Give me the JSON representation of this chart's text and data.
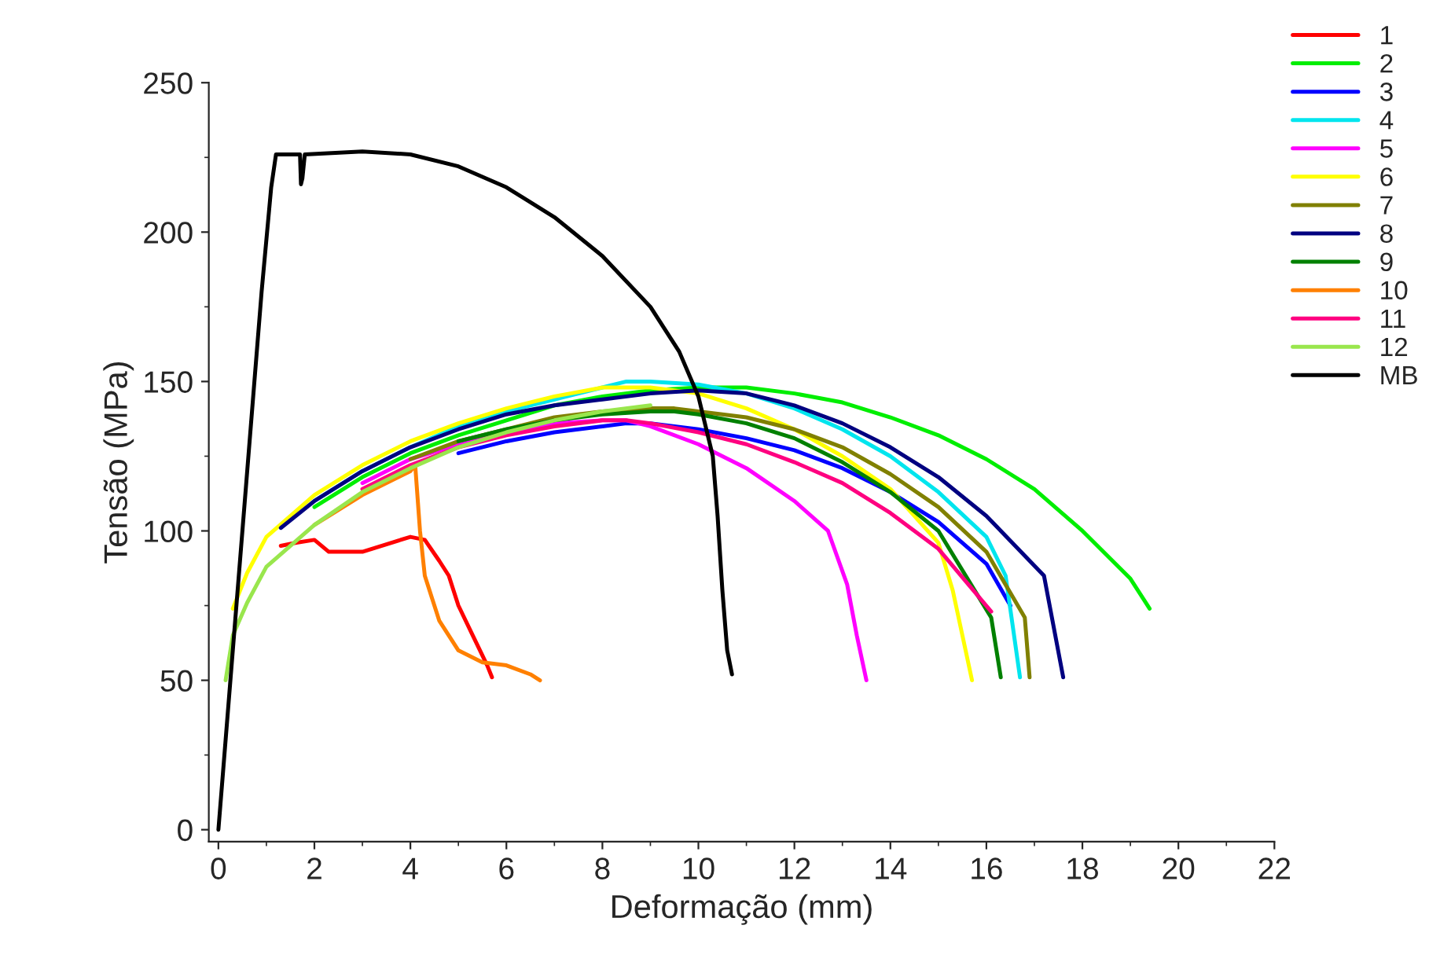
{
  "chart_data": {
    "type": "line",
    "xlabel": "Deformação (mm)",
    "ylabel": "Tensão (MPa)",
    "xlim": [
      -0.2,
      22
    ],
    "ylim": [
      -4,
      250
    ],
    "xticks": [
      0,
      2,
      4,
      6,
      8,
      10,
      12,
      14,
      16,
      18,
      20,
      22
    ],
    "yticks": [
      0,
      50,
      100,
      150,
      200,
      250
    ],
    "grid": false,
    "legend": "top right",
    "marker": "none",
    "line_style": "solid",
    "series": [
      {
        "name": "1",
        "color": "#ff0000",
        "x": [
          1.3,
          1.6,
          2,
          2.3,
          3,
          4,
          4.3,
          4.6,
          4.8,
          5,
          5.3,
          5.6,
          5.7
        ],
        "values": [
          95,
          96,
          97,
          93,
          93,
          98,
          97,
          90,
          85,
          75,
          65,
          55,
          51
        ]
      },
      {
        "name": "2",
        "color": "#00ee00",
        "x": [
          2,
          3,
          4,
          5,
          6,
          7,
          8,
          9,
          10,
          11,
          12,
          13,
          14,
          15,
          16,
          17,
          18,
          19,
          19.4
        ],
        "values": [
          108,
          118,
          126,
          132,
          137,
          142,
          145,
          147,
          148,
          148,
          146,
          143,
          138,
          132,
          124,
          114,
          100,
          84,
          74
        ]
      },
      {
        "name": "3",
        "color": "#0000ff",
        "x": [
          5,
          6,
          7,
          8,
          8.5,
          9,
          10,
          11,
          12,
          13,
          14,
          15,
          16,
          16.5
        ],
        "values": [
          126,
          130,
          133,
          135,
          136,
          136,
          134,
          131,
          127,
          121,
          113,
          103,
          89,
          75
        ]
      },
      {
        "name": "4",
        "color": "#00e5ee",
        "x": [
          2,
          3,
          4,
          5,
          6,
          7,
          8,
          8.5,
          9,
          10,
          11,
          12,
          13,
          14,
          15,
          16,
          16.4,
          16.7
        ],
        "values": [
          110,
          120,
          128,
          135,
          140,
          144,
          148,
          150,
          150,
          149,
          146,
          141,
          134,
          125,
          113,
          98,
          85,
          51
        ]
      },
      {
        "name": "5",
        "color": "#ff00ff",
        "x": [
          3,
          4,
          5,
          6,
          7,
          8,
          8.5,
          9,
          10,
          11,
          12,
          12.7,
          13.1,
          13.3,
          13.5
        ],
        "values": [
          116,
          124,
          129,
          133,
          136,
          137,
          137,
          135,
          129,
          121,
          110,
          100,
          82,
          65,
          50
        ]
      },
      {
        "name": "6",
        "color": "#ffff00",
        "x": [
          0.3,
          0.6,
          1,
          2,
          3,
          4,
          5,
          6,
          7,
          8,
          9,
          10,
          11,
          12,
          13,
          14,
          15,
          15.3,
          15.5,
          15.7
        ],
        "values": [
          74,
          86,
          98,
          112,
          122,
          130,
          136,
          141,
          145,
          148,
          148,
          146,
          141,
          134,
          125,
          114,
          96,
          80,
          65,
          50
        ]
      },
      {
        "name": "7",
        "color": "#808000",
        "x": [
          4,
          5,
          6,
          7,
          8,
          9,
          9.5,
          10,
          11,
          12,
          13,
          14,
          15,
          16,
          16.8,
          16.9
        ],
        "values": [
          124,
          130,
          134,
          138,
          140,
          141,
          141,
          140,
          138,
          134,
          128,
          119,
          108,
          93,
          71,
          51
        ]
      },
      {
        "name": "8",
        "color": "#000080",
        "x": [
          1.3,
          2,
          3,
          4,
          5,
          6,
          7,
          8,
          9,
          10,
          11,
          12,
          13,
          14,
          15,
          16,
          17.2,
          17.6
        ],
        "values": [
          101,
          110,
          120,
          128,
          134,
          139,
          142,
          144,
          146,
          147,
          146,
          142,
          136,
          128,
          118,
          105,
          85,
          51
        ]
      },
      {
        "name": "9",
        "color": "#008000",
        "x": [
          5,
          6,
          7,
          8,
          9,
          9.5,
          10,
          11,
          12,
          13,
          14,
          15,
          16.1,
          16.3
        ],
        "values": [
          130,
          134,
          137,
          139,
          140,
          140,
          139,
          136,
          131,
          123,
          113,
          100,
          71,
          51
        ]
      },
      {
        "name": "10",
        "color": "#ff8000",
        "x": [
          2,
          3,
          4,
          4.1,
          4.2,
          4.3,
          4.6,
          5,
          5.5,
          6,
          6.5,
          6.7
        ],
        "values": [
          102,
          112,
          120,
          122,
          100,
          85,
          70,
          60,
          56,
          55,
          52,
          50
        ]
      },
      {
        "name": "11",
        "color": "#ff0080",
        "x": [
          3,
          4,
          5,
          6,
          7,
          8,
          8.5,
          9,
          10,
          11,
          12,
          13,
          14,
          15,
          16.1
        ],
        "values": [
          114,
          122,
          128,
          132,
          135,
          137,
          137,
          136,
          133,
          129,
          123,
          116,
          106,
          94,
          73
        ]
      },
      {
        "name": "12",
        "color": "#99e64d",
        "x": [
          0.15,
          0.3,
          0.6,
          1,
          2,
          3,
          4,
          5,
          6,
          7,
          8,
          9
        ],
        "values": [
          50,
          65,
          76,
          88,
          102,
          113,
          121,
          128,
          133,
          137,
          140,
          142
        ]
      },
      {
        "name": "MB",
        "color": "#000000",
        "x": [
          0,
          0.3,
          0.6,
          0.9,
          1.1,
          1.2,
          1.7,
          1.72,
          1.75,
          1.8,
          3,
          4,
          5,
          6,
          7,
          8,
          9,
          9.6,
          10,
          10.3,
          10.4,
          10.5,
          10.6,
          10.7
        ],
        "values": [
          0,
          60,
          120,
          180,
          215,
          226,
          226,
          216,
          218,
          226,
          227,
          226,
          222,
          215,
          205,
          192,
          175,
          160,
          145,
          125,
          105,
          80,
          60,
          52
        ]
      }
    ]
  }
}
